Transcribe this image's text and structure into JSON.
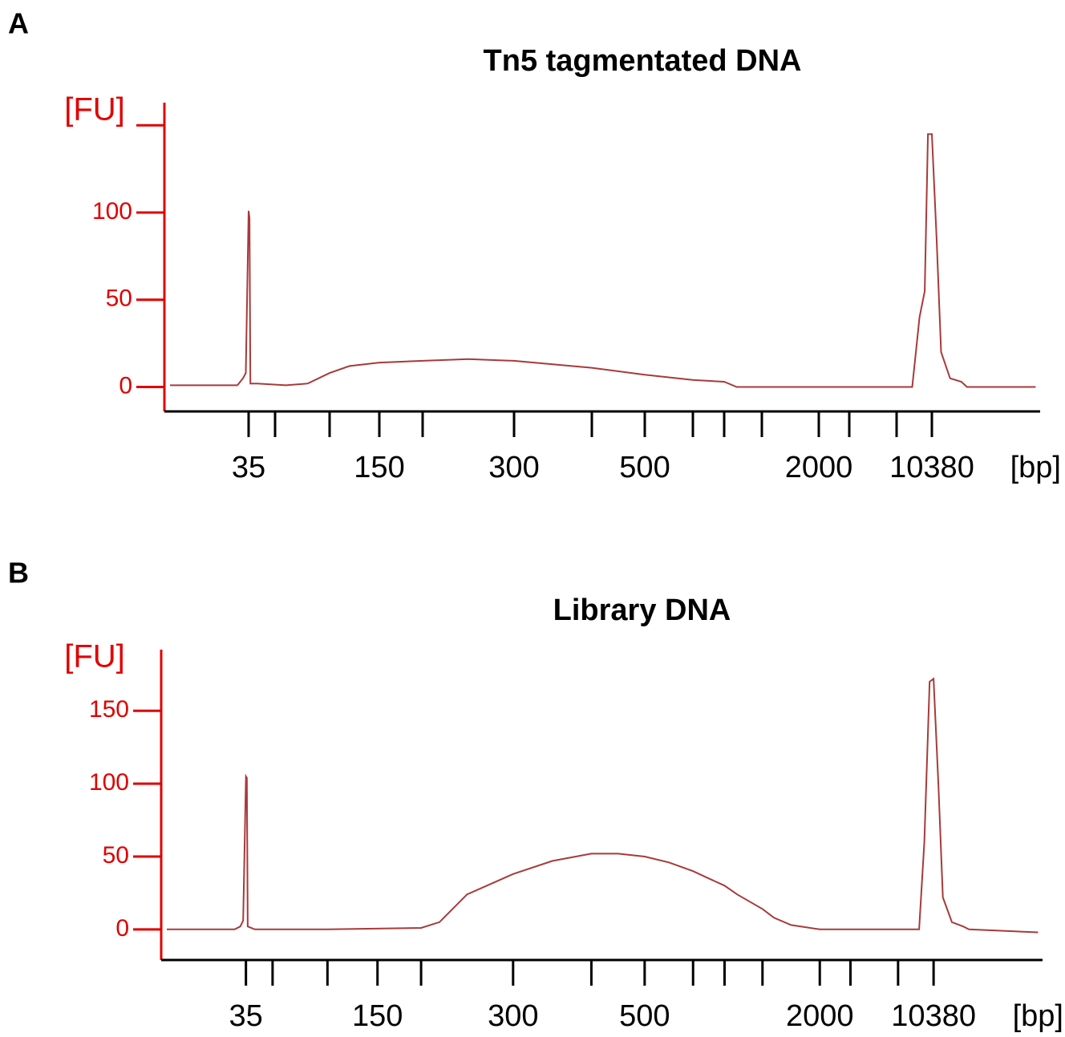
{
  "chart_data": [
    {
      "type": "line",
      "panel_label": "A",
      "title": "Tn5 tagmentated DNA",
      "ylabel": "[FU]",
      "xlabel": "[bp]",
      "color": "#a83a3a",
      "axis_color": "#e00000",
      "xlim": [
        20,
        20000
      ],
      "ylim": [
        -14,
        163
      ],
      "xticks": [
        35,
        {
          "value": 50,
          "label": null
        },
        {
          "value": 100,
          "label": null
        },
        150,
        {
          "value": 200,
          "label": null
        },
        300,
        {
          "value": 400,
          "label": null
        },
        500,
        {
          "value": 600,
          "label": null
        },
        {
          "value": 700,
          "label": null
        },
        {
          "value": 1000,
          "label": null
        },
        2000,
        {
          "value": 3000,
          "label": null
        },
        {
          "value": 7000,
          "label": null
        },
        10380
      ],
      "yticks": [
        0,
        50,
        100,
        {
          "value": 150,
          "label": null
        }
      ],
      "x": [
        21,
        33,
        34,
        34.5,
        35,
        35.5,
        36,
        40,
        60,
        80,
        100,
        120,
        150,
        200,
        250,
        300,
        400,
        500,
        600,
        700,
        800,
        7000,
        8500,
        9200,
        9700,
        10000,
        10380,
        10800,
        11200,
        12000,
        13000,
        13500,
        19600
      ],
      "values": [
        1,
        1,
        5,
        8,
        101,
        97,
        2,
        2,
        1,
        2,
        8,
        12,
        14,
        15,
        16,
        15,
        11,
        7,
        4,
        3,
        0,
        0,
        0,
        40,
        55,
        145,
        145,
        85,
        20,
        5,
        3,
        0,
        0
      ]
    },
    {
      "type": "line",
      "panel_label": "B",
      "title": "Library DNA",
      "ylabel": "[FU]",
      "xlabel": "[bp]",
      "color": "#a83a3a",
      "axis_color": "#e00000",
      "xlim": [
        20,
        20000
      ],
      "ylim": [
        -21,
        192
      ],
      "xticks": [
        35,
        {
          "value": 50,
          "label": null
        },
        {
          "value": 100,
          "label": null
        },
        150,
        {
          "value": 200,
          "label": null
        },
        300,
        {
          "value": 400,
          "label": null
        },
        500,
        {
          "value": 600,
          "label": null
        },
        {
          "value": 700,
          "label": null
        },
        {
          "value": 1000,
          "label": null
        },
        2000,
        {
          "value": 3000,
          "label": null
        },
        {
          "value": 7000,
          "label": null
        },
        10380
      ],
      "yticks": [
        0,
        50,
        100,
        150
      ],
      "x": [
        21,
        33,
        34,
        34.5,
        35,
        35.5,
        36,
        40,
        100,
        200,
        220,
        250,
        300,
        350,
        400,
        450,
        500,
        550,
        600,
        650,
        700,
        800,
        1000,
        1200,
        1500,
        2000,
        7000,
        9000,
        9500,
        10000,
        10380,
        10800,
        11200,
        12000,
        13000,
        13500,
        19600
      ],
      "values": [
        0,
        0,
        2,
        6,
        105,
        104,
        2,
        0,
        0,
        1,
        5,
        24,
        38,
        47,
        52,
        52,
        50,
        46,
        40,
        35,
        30,
        24,
        14,
        8,
        3,
        0,
        0,
        0,
        60,
        170,
        172,
        100,
        22,
        5,
        2,
        0,
        -2
      ]
    }
  ]
}
